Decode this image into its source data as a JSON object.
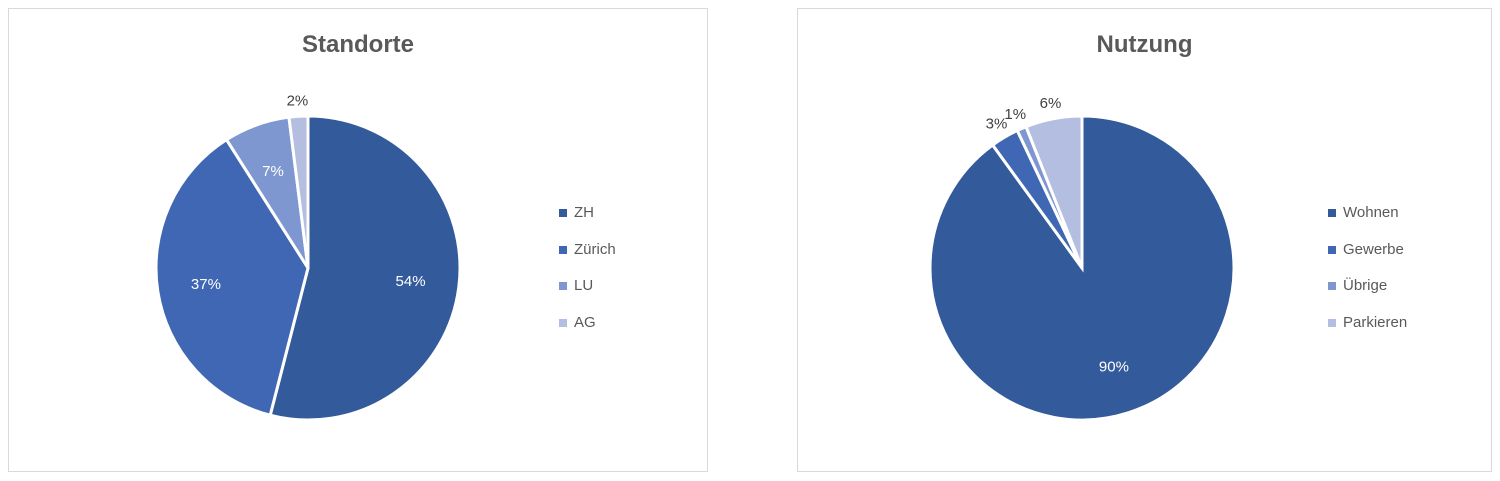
{
  "chart_data": [
    {
      "type": "pie",
      "title": "Standorte",
      "categories": [
        "ZH",
        "Zürich",
        "LU",
        "AG"
      ],
      "values": [
        54,
        37,
        7,
        2
      ],
      "labels": [
        "54%",
        "37%",
        "7%",
        "2%"
      ],
      "label_position": [
        "inside",
        "inside",
        "inside",
        "outside"
      ],
      "colors": [
        "#335A9A",
        "#3F67B4",
        "#7F97D0",
        "#B4BEE0"
      ],
      "legend": "right",
      "start": "top",
      "direction": "clockwise"
    },
    {
      "type": "pie",
      "title": "Nutzung",
      "categories": [
        "Wohnen",
        "Gewerbe",
        "Übrige",
        "Parkieren"
      ],
      "values": [
        90,
        3,
        1,
        6
      ],
      "labels": [
        "90%",
        "3%",
        "1%",
        "6%"
      ],
      "label_position": [
        "inside",
        "outside",
        "outside",
        "outside"
      ],
      "colors": [
        "#335A9A",
        "#3F67B4",
        "#7F97D0",
        "#B4BEE0"
      ],
      "legend": "right",
      "start": "top",
      "direction": "clockwise"
    }
  ]
}
